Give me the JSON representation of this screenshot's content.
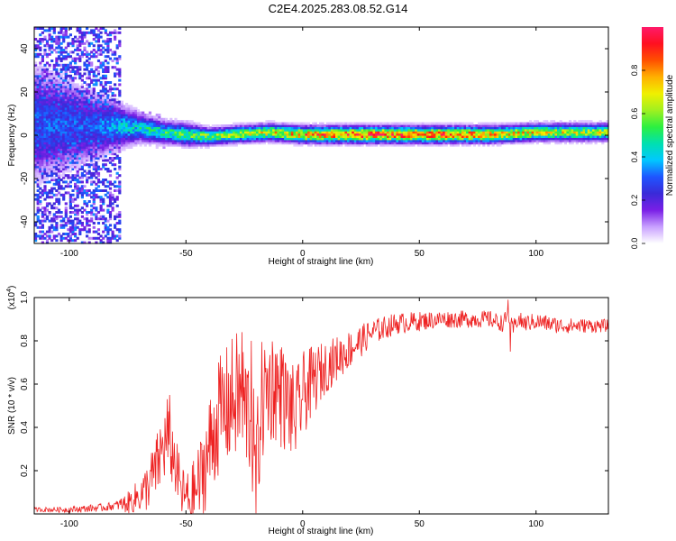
{
  "title": "C2E4.2025.283.08.52.G14",
  "colorbar": {
    "label": "Normalized spectral amplitude",
    "ticks": [
      "0.0",
      "0.2",
      "0.4",
      "0.6",
      "0.8"
    ],
    "tick_values": [
      0.0,
      0.2,
      0.4,
      0.6,
      0.8
    ],
    "range": [
      0,
      1
    ],
    "colors": [
      "#ffffff",
      "#c8a0ff",
      "#7a1fe6",
      "#3a2ad8",
      "#1f55ff",
      "#00c8ff",
      "#00e0b0",
      "#2cf040",
      "#a0f020",
      "#f0f000",
      "#ffb000",
      "#ff5000",
      "#ff1020",
      "#ff1a6a"
    ]
  },
  "chart_data": [
    {
      "type": "heatmap",
      "xlabel": "Height of straight line (km)",
      "ylabel": "Frequency (Hz)",
      "xlim": [
        -115,
        131
      ],
      "ylim": [
        -50,
        50
      ],
      "x_ticks": [
        -100,
        -50,
        0,
        50,
        100
      ],
      "x_tick_labels": [
        "-100",
        "-50",
        "0",
        "50",
        "100"
      ],
      "y_ticks": [
        -40,
        -20,
        0,
        20,
        40
      ],
      "y_tick_labels": [
        "-40",
        "-20",
        "0",
        "20",
        "40"
      ],
      "ridge": [
        {
          "x": -115,
          "f": 5,
          "amp": 0.3,
          "width": 20
        },
        {
          "x": -90,
          "f": 4,
          "amp": 0.3,
          "width": 12
        },
        {
          "x": -80,
          "f": 4,
          "amp": 0.4,
          "width": 8
        },
        {
          "x": -70,
          "f": 3,
          "amp": 0.45,
          "width": 5
        },
        {
          "x": -60,
          "f": 1,
          "amp": 0.5,
          "width": 4
        },
        {
          "x": -50,
          "f": 0,
          "amp": 0.55,
          "width": 4
        },
        {
          "x": -40,
          "f": -1,
          "amp": 0.6,
          "width": 3
        },
        {
          "x": -30,
          "f": 0,
          "amp": 0.65,
          "width": 3
        },
        {
          "x": -15,
          "f": 1,
          "amp": 0.7,
          "width": 3
        },
        {
          "x": 0,
          "f": 0,
          "amp": 0.8,
          "width": 3
        },
        {
          "x": 20,
          "f": 0,
          "amp": 0.9,
          "width": 3
        },
        {
          "x": 50,
          "f": 0,
          "amp": 0.9,
          "width": 3
        },
        {
          "x": 80,
          "f": 0,
          "amp": 0.8,
          "width": 3
        },
        {
          "x": 100,
          "f": 1,
          "amp": 0.7,
          "width": 3
        },
        {
          "x": 131,
          "f": 1,
          "amp": 0.65,
          "width": 3
        }
      ],
      "noise_region": {
        "x_start": -115,
        "x_end": -78,
        "amp": 0.45
      }
    },
    {
      "type": "line",
      "xlabel": "Height of straight line (km)",
      "ylabel": "SNR (10 * v/v)",
      "y_scale_label": "(x10",
      "y_scale_exp": "4",
      "y_scale_suffix": ")",
      "xlim": [
        -115,
        131
      ],
      "ylim": [
        0,
        1.0
      ],
      "x_ticks": [
        -100,
        -50,
        0,
        50,
        100
      ],
      "x_tick_labels": [
        "-100",
        "-50",
        "0",
        "50",
        "100"
      ],
      "y_ticks": [
        0.2,
        0.4,
        0.6,
        0.8,
        1.0
      ],
      "y_tick_labels": [
        "0.2",
        "0.4",
        "0.6",
        "0.8",
        "1.0"
      ],
      "color": "#ee2222",
      "envelope": {
        "x": [
          -115,
          -100,
          -85,
          -75,
          -68,
          -63,
          -60,
          -58,
          -55,
          -52,
          -48,
          -44,
          -40,
          -36,
          -32,
          -28,
          -25,
          -22,
          -20,
          -18,
          -15,
          -12,
          -10,
          -6,
          -3,
          0,
          5,
          10,
          15,
          20,
          25,
          30,
          35,
          40,
          50,
          60,
          70,
          80,
          86,
          88,
          90,
          92,
          95,
          100,
          110,
          120,
          131
        ],
        "y": [
          0.02,
          0.02,
          0.03,
          0.05,
          0.1,
          0.2,
          0.3,
          0.35,
          0.25,
          0.1,
          0.06,
          0.15,
          0.3,
          0.45,
          0.5,
          0.55,
          0.5,
          0.45,
          0.12,
          0.5,
          0.58,
          0.6,
          0.55,
          0.5,
          0.45,
          0.55,
          0.62,
          0.68,
          0.72,
          0.76,
          0.8,
          0.84,
          0.86,
          0.88,
          0.89,
          0.9,
          0.9,
          0.9,
          0.88,
          0.92,
          0.85,
          0.9,
          0.88,
          0.89,
          0.87,
          0.87,
          0.87
        ]
      },
      "noise": {
        "x": [
          -115,
          -80,
          -70,
          -60,
          -50,
          -40,
          -30,
          -20,
          -10,
          0,
          10,
          20,
          30,
          40,
          60,
          80,
          100,
          131
        ],
        "amp": [
          0.01,
          0.02,
          0.08,
          0.18,
          0.12,
          0.25,
          0.3,
          0.3,
          0.25,
          0.2,
          0.12,
          0.09,
          0.06,
          0.05,
          0.04,
          0.04,
          0.04,
          0.03
        ]
      },
      "peaks": [
        {
          "x": -58,
          "y": 0.53
        },
        {
          "x": -57,
          "y": 0.55
        },
        {
          "x": -36,
          "y": 0.7
        },
        {
          "x": -26,
          "y": 0.84
        },
        {
          "x": -22,
          "y": 0.8
        },
        {
          "x": -11,
          "y": 0.74
        },
        {
          "x": -9,
          "y": 0.77
        },
        {
          "x": 88,
          "y": 0.99
        },
        {
          "x": 89,
          "y": 0.75
        }
      ]
    }
  ]
}
